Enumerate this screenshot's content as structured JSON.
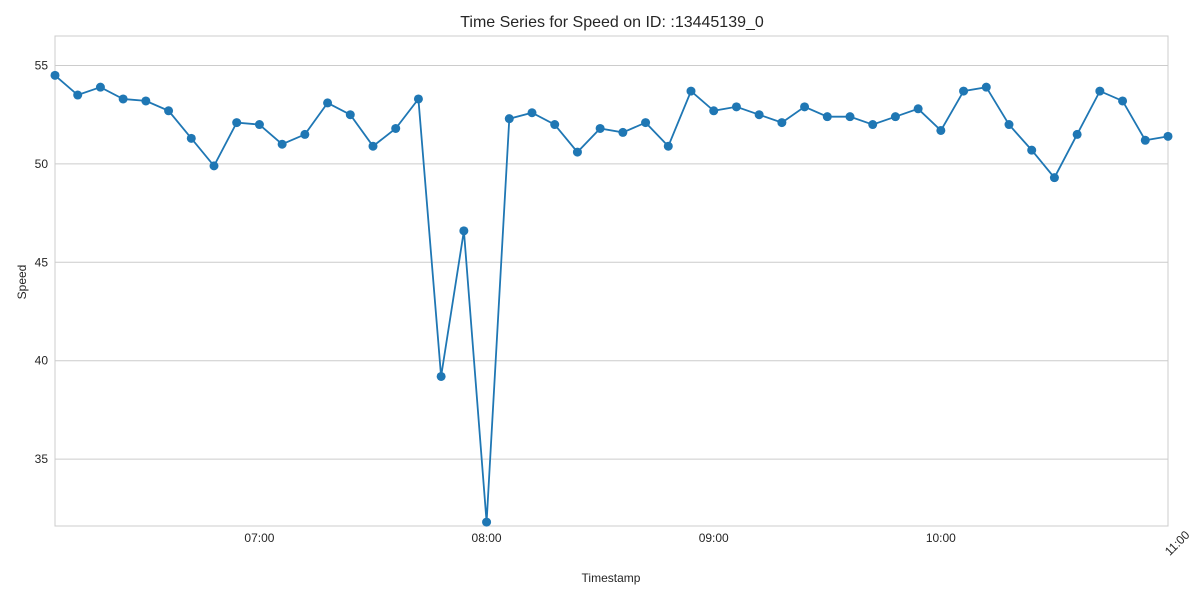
{
  "chart_data": {
    "type": "line",
    "title": "Time Series for Speed on ID: :13445139_0",
    "xlabel": "Timestamp",
    "ylabel": "Speed",
    "grid": true,
    "x_range": [
      "06:06",
      "11:00"
    ],
    "ylim": [
      31.6,
      56.5
    ],
    "x_ticks": [
      {
        "t": "07:00",
        "label": "07:00"
      },
      {
        "t": "08:00",
        "label": "08:00"
      },
      {
        "t": "09:00",
        "label": "09:00"
      },
      {
        "t": "10:00",
        "label": "10:00"
      },
      {
        "t": "11:00",
        "label": "11:00"
      }
    ],
    "y_ticks": [
      35,
      40,
      45,
      50,
      55
    ],
    "colors": {
      "series": "#1f77b4",
      "grid": "#cccccc",
      "frame": "#cccccc"
    },
    "series": [
      {
        "x": [
          "06:06",
          "06:12",
          "06:18",
          "06:24",
          "06:30",
          "06:36",
          "06:42",
          "06:48",
          "06:54",
          "07:00",
          "07:06",
          "07:12",
          "07:18",
          "07:24",
          "07:30",
          "07:36",
          "07:42",
          "07:48",
          "07:54",
          "08:00",
          "08:06",
          "08:12",
          "08:18",
          "08:24",
          "08:30",
          "08:36",
          "08:42",
          "08:48",
          "08:54",
          "09:00",
          "09:06",
          "09:12",
          "09:18",
          "09:24",
          "09:30",
          "09:36",
          "09:42",
          "09:48",
          "09:54",
          "10:00",
          "10:06",
          "10:12",
          "10:18",
          "10:24",
          "10:30",
          "10:36",
          "10:42",
          "10:48",
          "10:54",
          "11:00"
        ],
        "values": [
          54.5,
          53.5,
          53.9,
          53.3,
          53.2,
          52.7,
          51.3,
          49.9,
          52.1,
          52.0,
          51.0,
          51.5,
          53.1,
          52.5,
          50.9,
          51.8,
          53.3,
          39.2,
          46.6,
          31.8,
          52.3,
          52.6,
          52.0,
          50.6,
          51.8,
          51.6,
          52.1,
          50.9,
          53.7,
          52.7,
          52.9,
          52.5,
          52.1,
          52.9,
          52.4,
          52.4,
          52.0,
          52.4,
          52.8,
          51.7,
          53.7,
          53.9,
          52.0,
          50.7,
          49.3,
          51.5,
          53.7,
          53.2,
          51.2,
          51.4
        ]
      }
    ]
  }
}
